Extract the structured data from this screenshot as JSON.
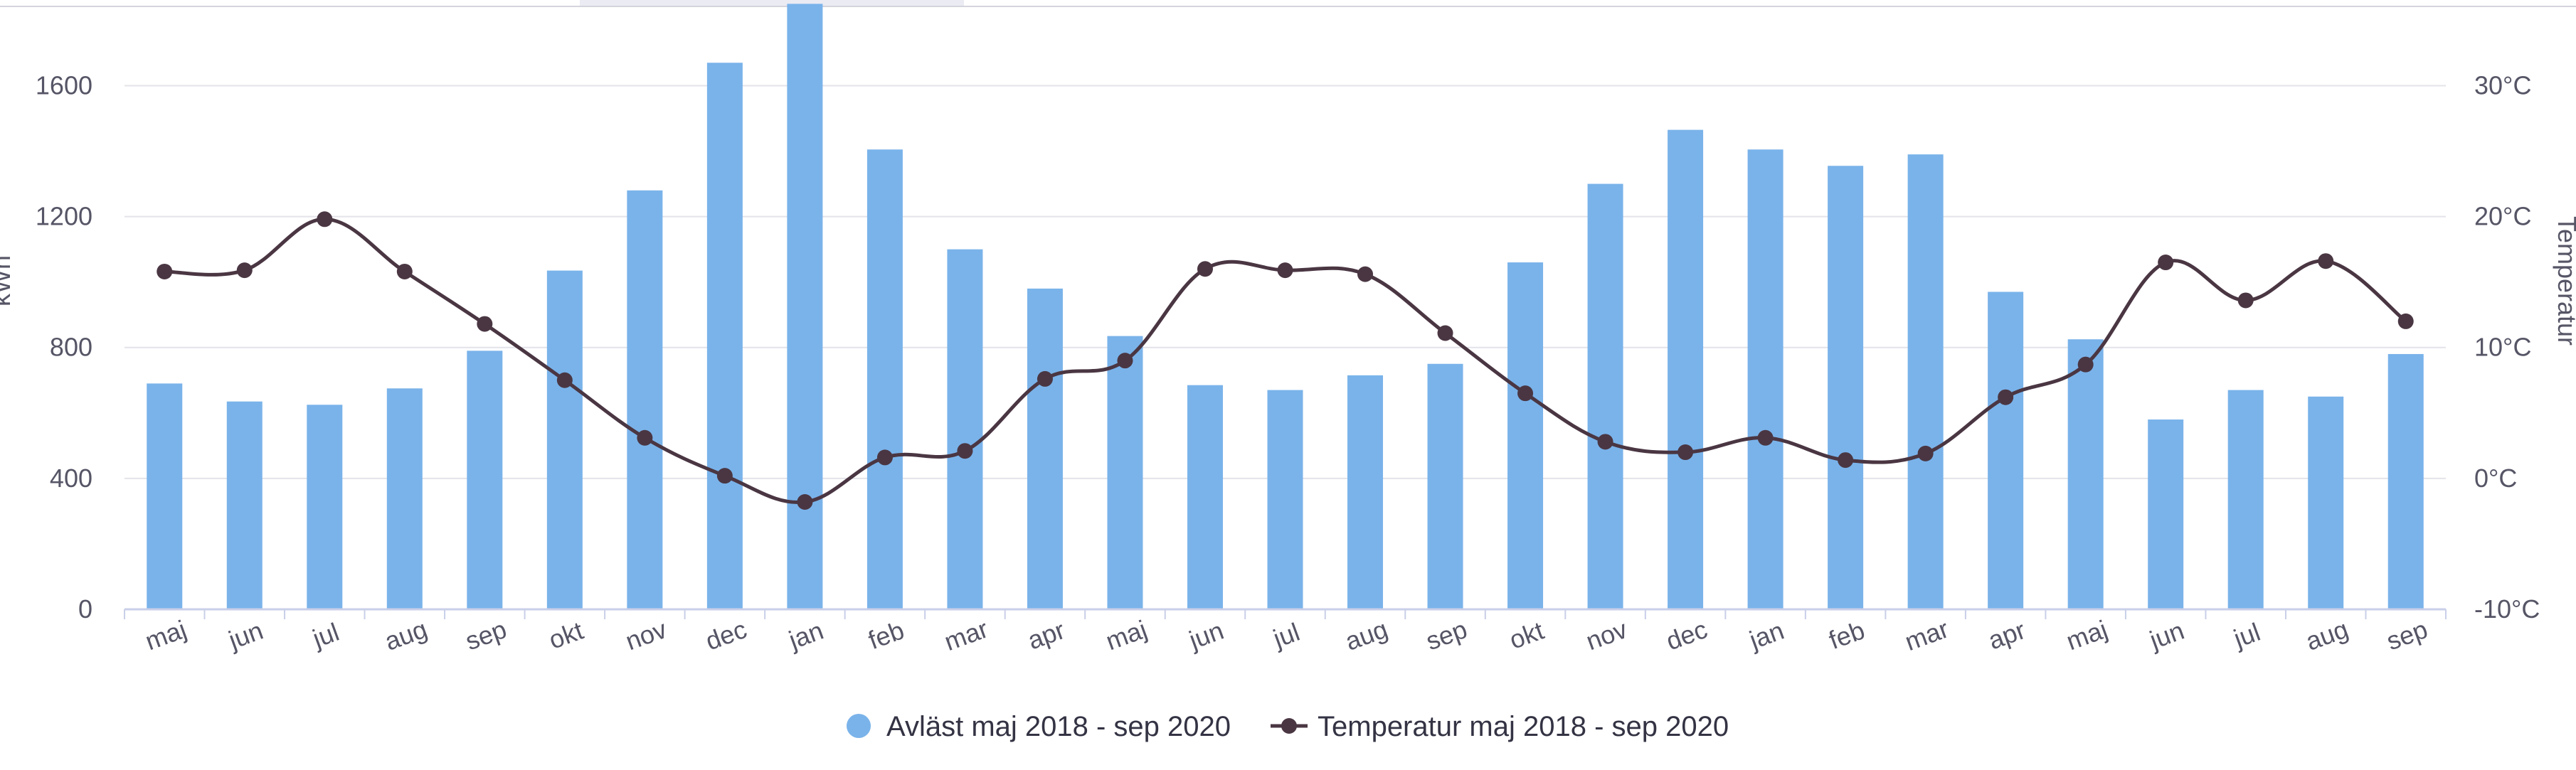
{
  "chart_data": {
    "type": "bar",
    "categories": [
      "maj",
      "jun",
      "jul",
      "aug",
      "sep",
      "okt",
      "nov",
      "dec",
      "jan",
      "feb",
      "mar",
      "apr",
      "maj",
      "jun",
      "jul",
      "aug",
      "sep",
      "okt",
      "nov",
      "dec",
      "jan",
      "feb",
      "mar",
      "apr",
      "maj",
      "jun",
      "jul",
      "aug",
      "sep"
    ],
    "series": [
      {
        "name": "Avläst maj 2018 - sep 2020",
        "type": "bar",
        "axis": "left",
        "color": "#7ab3ea",
        "values": [
          690,
          635,
          625,
          675,
          790,
          1035,
          1280,
          1670,
          1850,
          1405,
          1100,
          980,
          835,
          685,
          670,
          715,
          750,
          1060,
          1300,
          1465,
          1405,
          1355,
          1390,
          970,
          825,
          580,
          670,
          650,
          780
        ]
      },
      {
        "name": "Temperatur maj 2018 - sep 2020",
        "type": "line",
        "axis": "right",
        "color": "#4a3642",
        "values": [
          15.8,
          15.9,
          19.8,
          15.8,
          11.8,
          7.5,
          3.1,
          0.2,
          -1.8,
          1.6,
          2.1,
          7.6,
          9.0,
          16.0,
          15.9,
          15.6,
          11.1,
          6.5,
          2.8,
          2.0,
          3.1,
          1.4,
          1.9,
          6.2,
          8.7,
          16.5,
          13.6,
          16.6,
          12.0
        ]
      }
    ],
    "ylabel_left": "kWh",
    "ylabel_right": "Temperatur",
    "ylim_left": [
      0,
      1840
    ],
    "ylim_right": [
      -10,
      36
    ],
    "yticks_left": [
      "0",
      "400",
      "800",
      "1200",
      "1600"
    ],
    "yticks_right": [
      "-10°C",
      "0°C",
      "10°C",
      "20°C",
      "30°C"
    ],
    "grid": true,
    "legend_position": "bottom-center"
  }
}
